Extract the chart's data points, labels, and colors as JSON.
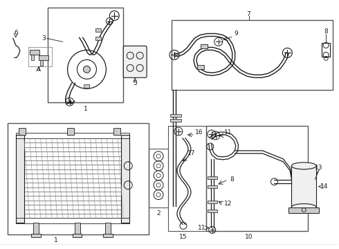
{
  "bg_color": "#ffffff",
  "lc": "#1a1a1a",
  "gray": "#888888",
  "light_gray": "#cccccc",
  "figsize": [
    4.9,
    3.6
  ],
  "dpi": 100
}
